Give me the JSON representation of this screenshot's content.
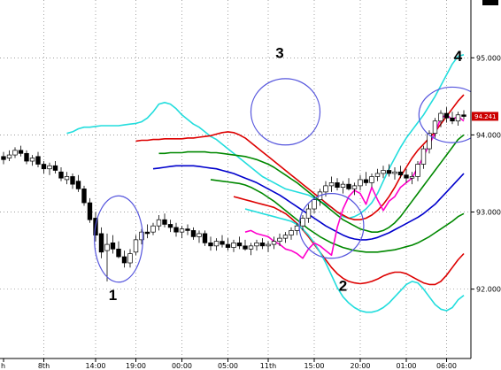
{
  "chart_data": {
    "type": "candlestick",
    "x_ticks": [
      {
        "label": "h",
        "i": 0
      },
      {
        "label": "8th",
        "i": 7
      },
      {
        "label": "14:00",
        "i": 16
      },
      {
        "label": "19:00",
        "i": 23
      },
      {
        "label": "00:00",
        "i": 31
      },
      {
        "label": "05:00",
        "i": 39
      },
      {
        "label": "11th",
        "i": 46
      },
      {
        "label": "15:00",
        "i": 54
      },
      {
        "label": "20:00",
        "i": 62
      },
      {
        "label": "01:00",
        "i": 70
      },
      {
        "label": "06:00",
        "i": 77
      }
    ],
    "y_ticks": [
      "95.000",
      "94.000",
      "93.000",
      "92.000"
    ],
    "y_tick_values": [
      95.0,
      94.0,
      93.0,
      92.0
    ],
    "ylim": [
      91.1,
      95.75
    ],
    "last_price": "94.241",
    "last_price_value": 94.241,
    "candles": [
      [
        93.72,
        93.78,
        93.62,
        93.68
      ],
      [
        93.7,
        93.8,
        93.66,
        93.74
      ],
      [
        93.74,
        93.84,
        93.7,
        93.8
      ],
      [
        93.8,
        93.86,
        93.72,
        93.76
      ],
      [
        93.76,
        93.8,
        93.62,
        93.66
      ],
      [
        93.66,
        93.74,
        93.6,
        93.7
      ],
      [
        93.72,
        93.78,
        93.58,
        93.62
      ],
      [
        93.62,
        93.66,
        93.5,
        93.56
      ],
      [
        93.56,
        93.64,
        93.48,
        93.6
      ],
      [
        93.6,
        93.66,
        93.5,
        93.54
      ],
      [
        93.52,
        93.58,
        93.4,
        93.44
      ],
      [
        93.42,
        93.52,
        93.36,
        93.46
      ],
      [
        93.46,
        93.5,
        93.3,
        93.36
      ],
      [
        93.4,
        93.48,
        93.26,
        93.3
      ],
      [
        93.3,
        93.34,
        93.08,
        93.12
      ],
      [
        93.12,
        93.18,
        92.86,
        92.9
      ],
      [
        92.92,
        93.0,
        92.62,
        92.7
      ],
      [
        92.72,
        92.8,
        92.4,
        92.48
      ],
      [
        92.5,
        92.72,
        92.1,
        92.58
      ],
      [
        92.6,
        92.7,
        92.46,
        92.52
      ],
      [
        92.52,
        92.62,
        92.4,
        92.42
      ],
      [
        92.42,
        92.5,
        92.28,
        92.34
      ],
      [
        92.34,
        92.52,
        92.28,
        92.46
      ],
      [
        92.48,
        92.7,
        92.44,
        92.64
      ],
      [
        92.64,
        92.78,
        92.58,
        92.74
      ],
      [
        92.74,
        92.84,
        92.66,
        92.72
      ],
      [
        92.74,
        92.86,
        92.7,
        92.82
      ],
      [
        92.82,
        92.96,
        92.76,
        92.9
      ],
      [
        92.9,
        92.98,
        92.8,
        92.84
      ],
      [
        92.84,
        92.9,
        92.74,
        92.8
      ],
      [
        92.8,
        92.86,
        92.68,
        92.74
      ],
      [
        92.74,
        92.82,
        92.66,
        92.78
      ],
      [
        92.78,
        92.84,
        92.7,
        92.76
      ],
      [
        92.76,
        92.8,
        92.64,
        92.68
      ],
      [
        92.68,
        92.76,
        92.6,
        92.72
      ],
      [
        92.72,
        92.76,
        92.56,
        92.6
      ],
      [
        92.6,
        92.68,
        92.5,
        92.56
      ],
      [
        92.56,
        92.66,
        92.5,
        92.62
      ],
      [
        92.62,
        92.7,
        92.54,
        92.58
      ],
      [
        92.58,
        92.66,
        92.5,
        92.54
      ],
      [
        92.54,
        92.64,
        92.48,
        92.6
      ],
      [
        92.6,
        92.68,
        92.52,
        92.56
      ],
      [
        92.56,
        92.64,
        92.5,
        92.52
      ],
      [
        92.52,
        92.6,
        92.44,
        92.56
      ],
      [
        92.56,
        92.64,
        92.5,
        92.6
      ],
      [
        92.6,
        92.66,
        92.52,
        92.56
      ],
      [
        92.56,
        92.62,
        92.48,
        92.58
      ],
      [
        92.58,
        92.68,
        92.52,
        92.62
      ],
      [
        92.62,
        92.72,
        92.56,
        92.66
      ],
      [
        92.66,
        92.74,
        92.6,
        92.7
      ],
      [
        92.7,
        92.8,
        92.64,
        92.76
      ],
      [
        92.76,
        92.86,
        92.7,
        92.82
      ],
      [
        92.82,
        92.96,
        92.76,
        92.92
      ],
      [
        92.92,
        93.1,
        92.86,
        93.04
      ],
      [
        93.04,
        93.2,
        92.98,
        93.16
      ],
      [
        93.16,
        93.3,
        93.08,
        93.26
      ],
      [
        93.26,
        93.4,
        93.2,
        93.34
      ],
      [
        93.34,
        93.46,
        93.26,
        93.38
      ],
      [
        93.38,
        93.44,
        93.28,
        93.32
      ],
      [
        93.32,
        93.4,
        93.24,
        93.36
      ],
      [
        93.36,
        93.44,
        93.28,
        93.3
      ],
      [
        93.3,
        93.38,
        93.22,
        93.34
      ],
      [
        93.34,
        93.48,
        93.28,
        93.42
      ],
      [
        93.42,
        93.52,
        93.34,
        93.38
      ],
      [
        93.38,
        93.5,
        93.32,
        93.46
      ],
      [
        93.46,
        93.56,
        93.4,
        93.5
      ],
      [
        93.5,
        93.6,
        93.44,
        93.54
      ],
      [
        93.54,
        93.62,
        93.46,
        93.5
      ],
      [
        93.5,
        93.58,
        93.42,
        93.52
      ],
      [
        93.52,
        93.6,
        93.44,
        93.48
      ],
      [
        93.48,
        93.56,
        93.38,
        93.44
      ],
      [
        93.44,
        93.52,
        93.36,
        93.46
      ],
      [
        93.46,
        93.66,
        93.4,
        93.62
      ],
      [
        93.62,
        93.86,
        93.56,
        93.82
      ],
      [
        93.82,
        94.06,
        93.76,
        94.02
      ],
      [
        94.02,
        94.22,
        93.96,
        94.18
      ],
      [
        94.18,
        94.32,
        94.1,
        94.28
      ],
      [
        94.28,
        94.36,
        94.16,
        94.22
      ],
      [
        94.22,
        94.3,
        94.14,
        94.18
      ],
      [
        94.18,
        94.3,
        94.12,
        94.26
      ],
      [
        94.26,
        94.32,
        94.2,
        94.24
      ]
    ],
    "lines": [
      {
        "color": "#22dddd",
        "values": [
          94.02,
          94.04,
          94.08,
          94.1,
          94.1,
          94.11,
          94.12,
          94.12,
          94.12,
          94.12,
          94.13,
          94.14,
          94.15,
          94.17,
          94.22,
          94.3,
          94.4,
          94.42,
          94.4,
          94.34,
          94.26,
          94.2,
          94.14,
          94.1,
          94.04,
          93.98,
          93.94,
          93.88,
          93.82,
          93.76,
          93.7,
          93.64,
          93.58,
          93.52,
          93.46,
          93.42,
          93.38,
          93.34,
          93.3,
          93.28,
          93.26,
          93.24,
          93.22,
          93.18,
          93.14,
          93.1,
          93.06,
          93.0,
          92.94,
          92.92,
          92.94,
          92.98,
          93.04,
          93.12,
          93.24,
          93.4,
          93.56,
          93.7,
          93.84,
          93.96,
          94.06,
          94.16,
          94.26,
          94.38,
          94.5,
          94.64,
          94.78,
          94.92,
          95.02,
          95.04
        ]
      },
      {
        "color": "#dd0000",
        "values": [
          93.92,
          93.93,
          93.93,
          93.94,
          93.94,
          93.95,
          93.95,
          93.95,
          93.95,
          93.96,
          93.96,
          93.97,
          93.98,
          93.99,
          94.01,
          94.03,
          94.04,
          94.03,
          94.0,
          93.96,
          93.9,
          93.84,
          93.78,
          93.72,
          93.66,
          93.6,
          93.54,
          93.48,
          93.42,
          93.36,
          93.3,
          93.24,
          93.18,
          93.12,
          93.06,
          93.0,
          92.96,
          92.92,
          92.9,
          92.9,
          92.92,
          92.96,
          93.02,
          93.1,
          93.2,
          93.32,
          93.46,
          93.58,
          93.7,
          93.8,
          93.88,
          93.96,
          94.04,
          94.14,
          94.24,
          94.34,
          94.44,
          94.52
        ]
      },
      {
        "color": "#008800",
        "values": [
          93.76,
          93.76,
          93.77,
          93.77,
          93.77,
          93.78,
          93.78,
          93.78,
          93.78,
          93.77,
          93.77,
          93.76,
          93.75,
          93.74,
          93.73,
          93.72,
          93.7,
          93.68,
          93.65,
          93.62,
          93.58,
          93.53,
          93.48,
          93.43,
          93.38,
          93.32,
          93.26,
          93.2,
          93.14,
          93.08,
          93.02,
          92.96,
          92.9,
          92.86,
          92.82,
          92.78,
          92.76,
          92.74,
          92.74,
          92.76,
          92.8,
          92.86,
          92.94,
          93.04,
          93.14,
          93.24,
          93.34,
          93.44,
          93.54,
          93.64,
          93.74,
          93.84,
          93.94,
          94.0
        ]
      },
      {
        "color": "#0000cc",
        "values": [
          93.56,
          93.57,
          93.58,
          93.59,
          93.6,
          93.6,
          93.6,
          93.6,
          93.59,
          93.58,
          93.57,
          93.56,
          93.54,
          93.52,
          93.5,
          93.47,
          93.44,
          93.41,
          93.38,
          93.34,
          93.3,
          93.26,
          93.22,
          93.17,
          93.12,
          93.07,
          93.02,
          92.97,
          92.92,
          92.87,
          92.82,
          92.78,
          92.74,
          92.7,
          92.67,
          92.65,
          92.64,
          92.64,
          92.65,
          92.67,
          92.7,
          92.73,
          92.77,
          92.81,
          92.85,
          92.89,
          92.93,
          92.98,
          93.04,
          93.1,
          93.18,
          93.26,
          93.34,
          93.42,
          93.5
        ]
      },
      {
        "color": "#008800",
        "values": [
          93.42,
          93.41,
          93.4,
          93.39,
          93.38,
          93.37,
          93.35,
          93.32,
          93.28,
          93.24,
          93.19,
          93.14,
          93.08,
          93.02,
          92.96,
          92.9,
          92.84,
          92.78,
          92.73,
          92.68,
          92.64,
          92.6,
          92.57,
          92.54,
          92.52,
          92.5,
          92.49,
          92.48,
          92.48,
          92.48,
          92.49,
          92.5,
          92.51,
          92.53,
          92.55,
          92.57,
          92.6,
          92.64,
          92.68,
          92.73,
          92.78,
          92.83,
          92.88,
          92.94,
          92.98
        ]
      },
      {
        "color": "#dd0000",
        "values": [
          93.2,
          93.18,
          93.16,
          93.14,
          93.12,
          93.1,
          93.08,
          93.06,
          93.02,
          92.98,
          92.92,
          92.85,
          92.77,
          92.68,
          92.58,
          92.48,
          92.38,
          92.28,
          92.2,
          92.14,
          92.1,
          92.08,
          92.07,
          92.08,
          92.1,
          92.13,
          92.17,
          92.2,
          92.22,
          92.22,
          92.2,
          92.16,
          92.12,
          92.08,
          92.06,
          92.06,
          92.1,
          92.18,
          92.28,
          92.38,
          92.46
        ]
      },
      {
        "color": "#22dddd",
        "values": [
          93.04,
          93.02,
          93.0,
          92.98,
          92.96,
          92.94,
          92.92,
          92.9,
          92.88,
          92.84,
          92.78,
          92.7,
          92.6,
          92.48,
          92.34,
          92.18,
          92.02,
          91.9,
          91.82,
          91.76,
          91.72,
          91.7,
          91.7,
          91.72,
          91.76,
          91.82,
          91.9,
          91.98,
          92.06,
          92.1,
          92.08,
          92.0,
          91.9,
          91.8,
          91.74,
          91.72,
          91.76,
          91.86,
          91.92
        ]
      },
      {
        "color": "#ff00cc",
        "values": [
          92.74,
          92.76,
          92.72,
          92.7,
          92.68,
          92.62,
          92.58,
          92.52,
          92.5,
          92.46,
          92.4,
          92.52,
          92.6,
          92.56,
          92.5,
          92.44,
          92.8,
          93.04,
          93.2,
          93.28,
          93.24,
          93.1,
          93.32,
          93.16,
          93.02,
          93.14,
          93.2,
          93.32,
          93.38,
          93.44,
          93.58,
          93.72,
          93.88,
          94.02,
          94.22,
          94.26,
          94.2,
          94.24,
          94.18
        ]
      }
    ],
    "annotations": [
      {
        "label": "1",
        "i": 19,
        "y": 91.86
      },
      {
        "label": "2",
        "i": 59,
        "y": 91.98
      },
      {
        "label": "3",
        "i": 48,
        "y": 95.0
      },
      {
        "label": "4",
        "i": 79,
        "y": 94.96
      }
    ],
    "circles": [
      {
        "i": 20,
        "y": 92.65,
        "ri": 4.2,
        "ry": 0.56
      },
      {
        "i": 49,
        "y": 94.3,
        "ri": 6.0,
        "ry": 0.43
      },
      {
        "i": 57,
        "y": 92.82,
        "ri": 5.6,
        "ry": 0.42
      },
      {
        "i": 78,
        "y": 94.26,
        "ri": 5.8,
        "ry": 0.36
      }
    ]
  }
}
